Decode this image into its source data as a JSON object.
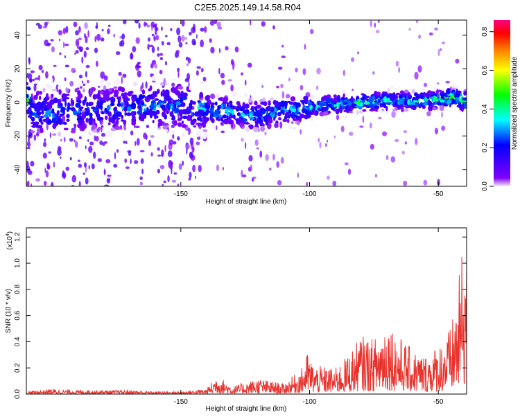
{
  "title": "C2E5.2025.149.14.58.R04",
  "chart_data": [
    {
      "type": "heatmap",
      "xlabel": "Height of straight line (km)",
      "ylabel": "Frequency (Hz)",
      "xlim": [
        -210,
        -39
      ],
      "ylim": [
        -50,
        49
      ],
      "x_ticks": [
        -150,
        -100,
        -50
      ],
      "y_ticks": [
        -40,
        -20,
        0,
        20,
        40
      ],
      "colorbar": {
        "label": "Normalized spectral amplitude",
        "range": [
          0.0,
          0.86
        ],
        "ticks": [
          0.0,
          0.2,
          0.4,
          0.6,
          0.8
        ],
        "colors": [
          "#f4eefe",
          "#8000ff",
          "#0000ff",
          "#00ffff",
          "#00ff00",
          "#ffff00",
          "#ff8000",
          "#ff0000",
          "#ff0080"
        ]
      },
      "ridge": [
        {
          "x": -208,
          "y": -6,
          "amp": 0.25
        },
        {
          "x": -200,
          "y": -6,
          "amp": 0.3
        },
        {
          "x": -190,
          "y": -5,
          "amp": 0.25
        },
        {
          "x": -180,
          "y": -4,
          "amp": 0.25
        },
        {
          "x": -170,
          "y": -3,
          "amp": 0.3
        },
        {
          "x": -160,
          "y": -2,
          "amp": 0.3
        },
        {
          "x": -150,
          "y": -2,
          "amp": 0.3
        },
        {
          "x": -140,
          "y": -4,
          "amp": 0.35
        },
        {
          "x": -130,
          "y": -6,
          "amp": 0.35
        },
        {
          "x": -120,
          "y": -8,
          "amp": 0.35
        },
        {
          "x": -110,
          "y": -5,
          "amp": 0.35
        },
        {
          "x": -100,
          "y": -3,
          "amp": 0.35
        },
        {
          "x": -90,
          "y": -1,
          "amp": 0.4
        },
        {
          "x": -80,
          "y": 0,
          "amp": 0.4
        },
        {
          "x": -70,
          "y": 1,
          "amp": 0.4
        },
        {
          "x": -60,
          "y": 1,
          "amp": 0.4
        },
        {
          "x": -50,
          "y": 2,
          "amp": 0.42
        },
        {
          "x": -45,
          "y": 3,
          "amp": 0.5
        },
        {
          "x": -40,
          "y": 1,
          "amp": 0.45
        }
      ],
      "grid": false
    },
    {
      "type": "line",
      "xlabel": "Height of straight line (km)",
      "ylabel": "SNR (10 * v/v)",
      "y_multiplier": "(x10",
      "y_multiplier_exponent": "4",
      "xlim": [
        -210,
        -39
      ],
      "ylim": [
        0,
        1.27
      ],
      "x_ticks": [
        -150,
        -100,
        -50
      ],
      "y_ticks": [
        0.0,
        0.2,
        0.4,
        0.6,
        0.8,
        1.0,
        1.2
      ],
      "series": [
        {
          "color": "#e8322c",
          "envelope": [
            {
              "x": -210,
              "y": 0.02
            },
            {
              "x": -200,
              "y": 0.04
            },
            {
              "x": -190,
              "y": 0.03
            },
            {
              "x": -180,
              "y": 0.03
            },
            {
              "x": -170,
              "y": 0.03
            },
            {
              "x": -160,
              "y": 0.02
            },
            {
              "x": -150,
              "y": 0.02
            },
            {
              "x": -140,
              "y": 0.04
            },
            {
              "x": -136,
              "y": 0.15
            },
            {
              "x": -130,
              "y": 0.06
            },
            {
              "x": -120,
              "y": 0.12
            },
            {
              "x": -110,
              "y": 0.08
            },
            {
              "x": -103,
              "y": 0.2
            },
            {
              "x": -101,
              "y": 0.32
            },
            {
              "x": -98,
              "y": 0.22
            },
            {
              "x": -90,
              "y": 0.2
            },
            {
              "x": -85,
              "y": 0.3
            },
            {
              "x": -80,
              "y": 0.45
            },
            {
              "x": -75,
              "y": 0.42
            },
            {
              "x": -70,
              "y": 0.6
            },
            {
              "x": -65,
              "y": 0.44
            },
            {
              "x": -60,
              "y": 0.34
            },
            {
              "x": -55,
              "y": 0.3
            },
            {
              "x": -50,
              "y": 0.38
            },
            {
              "x": -45,
              "y": 0.52
            },
            {
              "x": -42,
              "y": 0.88
            },
            {
              "x": -40,
              "y": 1.27
            }
          ]
        }
      ],
      "grid": false
    }
  ]
}
